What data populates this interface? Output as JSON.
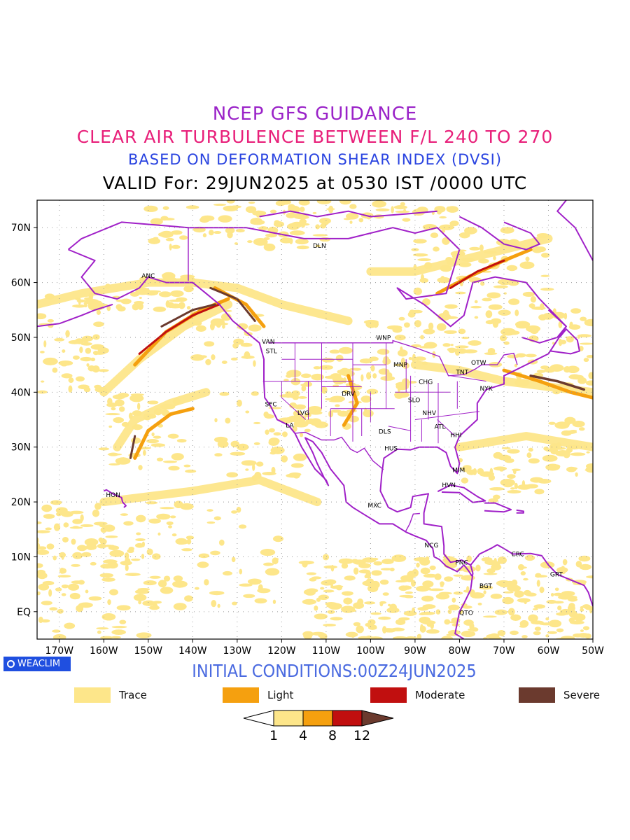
{
  "titles": {
    "line1": "NCEP GFS GUIDANCE",
    "line2": "CLEAR AIR TURBULENCE BETWEEN F/L 240 TO 270",
    "line3": "BASED ON DEFORMATION SHEAR INDEX (DVSI)",
    "line4": "VALID For: 29JUN2025 at 0530 IST /0000 UTC"
  },
  "map": {
    "lon_range": [
      -175,
      -50
    ],
    "lat_range": [
      -5,
      75
    ],
    "lon_ticks": [
      "170W",
      "160W",
      "150W",
      "140W",
      "130W",
      "120W",
      "110W",
      "100W",
      "90W",
      "80W",
      "70W",
      "60W",
      "50W"
    ],
    "lat_ticks": [
      "EQ",
      "10N",
      "20N",
      "30N",
      "40N",
      "50N",
      "60N",
      "70N"
    ],
    "stations": [
      {
        "code": "ANC",
        "lon": -150,
        "lat": 61.2
      },
      {
        "code": "DLN",
        "lon": -111.5,
        "lat": 66.7
      },
      {
        "code": "VAN",
        "lon": -123,
        "lat": 49.2
      },
      {
        "code": "STL",
        "lon": -122.3,
        "lat": 47.5
      },
      {
        "code": "WNP",
        "lon": -97.1,
        "lat": 49.9
      },
      {
        "code": "MNP",
        "lon": -93.3,
        "lat": 45
      },
      {
        "code": "OTW",
        "lon": -75.7,
        "lat": 45.4
      },
      {
        "code": "TNT",
        "lon": -79.4,
        "lat": 43.7
      },
      {
        "code": "CHG",
        "lon": -87.6,
        "lat": 41.9
      },
      {
        "code": "NYK",
        "lon": -74,
        "lat": 40.7
      },
      {
        "code": "DRV",
        "lon": -105,
        "lat": 39.7
      },
      {
        "code": "SFC",
        "lon": -122.4,
        "lat": 37.8
      },
      {
        "code": "LVG",
        "lon": -115.1,
        "lat": 36.2
      },
      {
        "code": "SLO",
        "lon": -90.2,
        "lat": 38.6
      },
      {
        "code": "NHV",
        "lon": -86.8,
        "lat": 36.2
      },
      {
        "code": "LA",
        "lon": -118.2,
        "lat": 34
      },
      {
        "code": "ATL",
        "lon": -84.4,
        "lat": 33.7
      },
      {
        "code": "DLS",
        "lon": -96.8,
        "lat": 32.8
      },
      {
        "code": "HHI",
        "lon": -80.8,
        "lat": 32.2
      },
      {
        "code": "HUS",
        "lon": -95.4,
        "lat": 29.8
      },
      {
        "code": "MIM",
        "lon": -80.2,
        "lat": 25.8
      },
      {
        "code": "HVN",
        "lon": -82.4,
        "lat": 23.1
      },
      {
        "code": "HON",
        "lon": -157.9,
        "lat": 21.3
      },
      {
        "code": "MXC",
        "lon": -99.1,
        "lat": 19.4
      },
      {
        "code": "NCG",
        "lon": -86.3,
        "lat": 12.1
      },
      {
        "code": "CRC",
        "lon": -66.9,
        "lat": 10.5
      },
      {
        "code": "PNC",
        "lon": -79.5,
        "lat": 9
      },
      {
        "code": "GRT",
        "lon": -58.2,
        "lat": 6.8
      },
      {
        "code": "BGT",
        "lon": -74.1,
        "lat": 4.7
      },
      {
        "code": "QTO",
        "lon": -78.5,
        "lat": -0.2
      }
    ]
  },
  "colors": {
    "trace": "#fde68a",
    "light": "#f5a00f",
    "moderate": "#c10f0f",
    "severe": "#6b3a2e",
    "coast": "#a020c8"
  },
  "badge": "WEACLIM",
  "initial_conditions": "INITIAL CONDITIONS:00Z24JUN2025",
  "legend": [
    {
      "label": "Trace",
      "color": "#fde68a"
    },
    {
      "label": "Light",
      "color": "#f5a00f"
    },
    {
      "label": "Moderate",
      "color": "#c10f0f"
    },
    {
      "label": "Severe",
      "color": "#6b3a2e"
    }
  ],
  "colorbar": {
    "thresholds": [
      "1",
      "4",
      "8",
      "12"
    ]
  }
}
